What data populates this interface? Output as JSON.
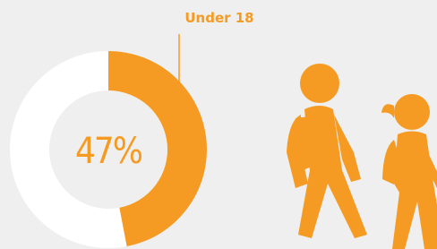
{
  "chart_data": {
    "type": "donut",
    "series": [
      {
        "name": "Under 18",
        "color": "#f59b23",
        "values": [
          47
        ],
        "value_labels": [
          "47%"
        ]
      }
    ],
    "track_color": "#ffffff"
  }
}
